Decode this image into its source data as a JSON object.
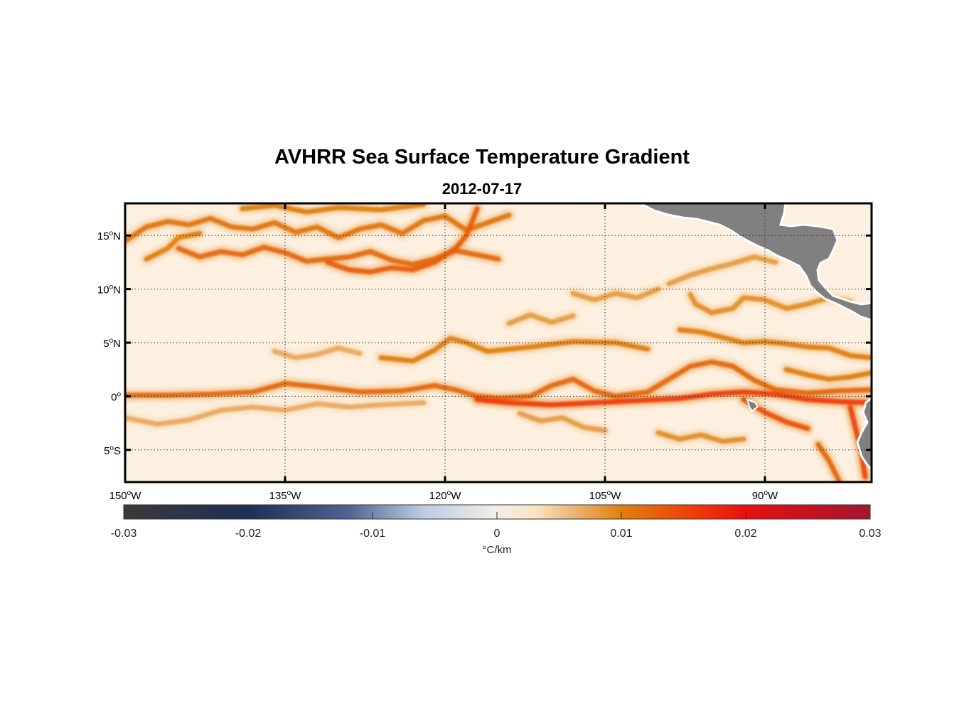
{
  "title": "AVHRR Sea Surface Temperature Gradient",
  "subtitle": "2012-07-17",
  "map": {
    "projection": "equirectangular",
    "lon_range": [
      -150,
      -80
    ],
    "lat_range": [
      -8,
      18
    ],
    "grid": "dotted",
    "lat_ticks": [
      {
        "value": 15,
        "label": "15",
        "hemi": "N"
      },
      {
        "value": 10,
        "label": "10",
        "hemi": "N"
      },
      {
        "value": 5,
        "label": "5",
        "hemi": "N"
      },
      {
        "value": 0,
        "label": "0",
        "hemi": ""
      },
      {
        "value": -5,
        "label": "5",
        "hemi": "S"
      }
    ],
    "lon_ticks": [
      {
        "value": -150,
        "label": "150",
        "hemi": "W"
      },
      {
        "value": -135,
        "label": "135",
        "hemi": "W"
      },
      {
        "value": -120,
        "label": "120",
        "hemi": "W"
      },
      {
        "value": -105,
        "label": "105",
        "hemi": "W"
      },
      {
        "value": -90,
        "label": "90",
        "hemi": "W"
      }
    ],
    "land_color": "#808080",
    "ocean_background": "#fdf0e0",
    "fronts": [
      {
        "name": "equatorial-front-main",
        "strength": 0.012,
        "points": [
          [
            -150,
            0.1
          ],
          [
            -146,
            0.1
          ],
          [
            -142,
            0.2
          ],
          [
            -138,
            0.4
          ],
          [
            -135,
            1.2
          ],
          [
            -132,
            0.9
          ],
          [
            -128,
            0.4
          ],
          [
            -124,
            0.5
          ],
          [
            -121,
            1.0
          ],
          [
            -119,
            0.6
          ],
          [
            -117,
            0.0
          ],
          [
            -115,
            -0.2
          ],
          [
            -112,
            0.0
          ],
          [
            -110,
            1.0
          ],
          [
            -108,
            1.6
          ],
          [
            -106,
            0.5
          ],
          [
            -104,
            0.0
          ],
          [
            -101,
            0.4
          ],
          [
            -99,
            1.6
          ],
          [
            -97,
            2.8
          ],
          [
            -95,
            3.2
          ],
          [
            -93,
            2.8
          ],
          [
            -91,
            1.5
          ],
          [
            -89,
            0.6
          ],
          [
            -86,
            0.3
          ],
          [
            -83,
            0.5
          ],
          [
            -80,
            0.6
          ]
        ]
      },
      {
        "name": "equatorial-front-south",
        "strength": 0.016,
        "points": [
          [
            -117,
            -0.3
          ],
          [
            -114,
            -0.6
          ],
          [
            -110,
            -0.8
          ],
          [
            -106,
            -0.6
          ],
          [
            -102,
            -0.4
          ],
          [
            -98,
            -0.2
          ],
          [
            -95,
            0.2
          ],
          [
            -92,
            0.4
          ],
          [
            -89,
            0.2
          ],
          [
            -86,
            -0.3
          ],
          [
            -83,
            -0.5
          ],
          [
            -80,
            -0.6
          ]
        ]
      },
      {
        "name": "cold-tongue-filament-1",
        "strength": 0.014,
        "points": [
          [
            -92,
            -0.3
          ],
          [
            -90,
            -1.5
          ],
          [
            -88,
            -2.4
          ],
          [
            -86,
            -3.0
          ]
        ]
      },
      {
        "name": "cold-tongue-filament-2",
        "strength": 0.015,
        "points": [
          [
            -82,
            -1.0
          ],
          [
            -81.5,
            -3.0
          ],
          [
            -81.0,
            -5.0
          ],
          [
            -80.6,
            -7.5
          ]
        ]
      },
      {
        "name": "cold-tongue-filament-3",
        "strength": 0.012,
        "points": [
          [
            -85,
            -4.5
          ],
          [
            -84,
            -6.0
          ],
          [
            -83,
            -8.0
          ]
        ]
      },
      {
        "name": "north-equatorial-front",
        "strength": 0.01,
        "points": [
          [
            -126,
            3.6
          ],
          [
            -123,
            3.3
          ],
          [
            -121,
            4.3
          ],
          [
            -119.5,
            5.4
          ],
          [
            -118,
            5.0
          ],
          [
            -116,
            4.2
          ],
          [
            -112,
            4.6
          ],
          [
            -108,
            5.1
          ],
          [
            -104,
            5.0
          ],
          [
            -101,
            4.4
          ]
        ]
      },
      {
        "name": "front-5n-east",
        "strength": 0.01,
        "points": [
          [
            -98,
            6.2
          ],
          [
            -96,
            6.0
          ],
          [
            -94,
            5.5
          ],
          [
            -92,
            5.0
          ],
          [
            -90,
            5.1
          ],
          [
            -88,
            4.9
          ],
          [
            -86,
            4.6
          ],
          [
            -84,
            4.5
          ],
          [
            -82,
            3.8
          ],
          [
            -80,
            3.6
          ]
        ]
      },
      {
        "name": "front-8n-east",
        "strength": 0.009,
        "points": [
          [
            -97,
            9.5
          ],
          [
            -96.5,
            8.6
          ],
          [
            -95,
            7.8
          ],
          [
            -93,
            8.2
          ],
          [
            -92,
            9.2
          ],
          [
            -90,
            9.0
          ],
          [
            -88,
            8.2
          ],
          [
            -86,
            8.6
          ],
          [
            -84,
            9.2
          ],
          [
            -82,
            8.8
          ]
        ]
      },
      {
        "name": "front-11n-east",
        "strength": 0.008,
        "points": [
          [
            -99,
            10.5
          ],
          [
            -97,
            11.3
          ],
          [
            -95,
            11.9
          ],
          [
            -93,
            12.4
          ],
          [
            -91,
            13.0
          ],
          [
            -89,
            12.5
          ]
        ]
      },
      {
        "name": "front-16n-1",
        "strength": 0.011,
        "points": [
          [
            -150,
            14.5
          ],
          [
            -148,
            15.8
          ],
          [
            -146,
            16.3
          ],
          [
            -144,
            16.0
          ],
          [
            -142,
            16.6
          ],
          [
            -140,
            15.8
          ],
          [
            -138,
            15.6
          ],
          [
            -136,
            16.2
          ],
          [
            -134,
            15.3
          ],
          [
            -132,
            15.8
          ],
          [
            -130,
            14.8
          ],
          [
            -128,
            15.6
          ],
          [
            -126,
            16.0
          ],
          [
            -124,
            15.2
          ],
          [
            -122,
            16.4
          ],
          [
            -120,
            16.8
          ],
          [
            -118,
            15.5
          ],
          [
            -116,
            16.2
          ],
          [
            -114,
            16.9
          ]
        ]
      },
      {
        "name": "front-13n-1",
        "strength": 0.012,
        "points": [
          [
            -145,
            13.8
          ],
          [
            -143,
            13.0
          ],
          [
            -141,
            13.5
          ],
          [
            -139,
            13.2
          ],
          [
            -137,
            13.9
          ],
          [
            -135,
            13.4
          ],
          [
            -133,
            12.6
          ],
          [
            -131,
            12.8
          ],
          [
            -129,
            13.0
          ],
          [
            -127,
            13.5
          ],
          [
            -125,
            12.7
          ],
          [
            -123,
            12.3
          ],
          [
            -121,
            12.8
          ],
          [
            -119,
            13.6
          ],
          [
            -117,
            13.2
          ],
          [
            -115,
            12.8
          ]
        ]
      },
      {
        "name": "front-12n-2",
        "strength": 0.013,
        "points": [
          [
            -131,
            12.5
          ],
          [
            -129,
            11.8
          ],
          [
            -127,
            11.6
          ],
          [
            -125,
            12.0
          ],
          [
            -123,
            11.8
          ],
          [
            -121,
            12.5
          ],
          [
            -119,
            13.8
          ],
          [
            -118,
            15.0
          ],
          [
            -117.5,
            16.2
          ],
          [
            -117,
            17.5
          ]
        ]
      },
      {
        "name": "front-14n-west",
        "strength": 0.01,
        "points": [
          [
            -148,
            12.8
          ],
          [
            -146,
            13.8
          ],
          [
            -145,
            14.8
          ],
          [
            -143,
            15.2
          ]
        ]
      },
      {
        "name": "front-17n-top",
        "strength": 0.01,
        "points": [
          [
            -139,
            17.5
          ],
          [
            -136,
            17.8
          ],
          [
            -133,
            17.2
          ],
          [
            -130,
            17.6
          ],
          [
            -126,
            17.4
          ],
          [
            -122,
            17.9
          ]
        ]
      },
      {
        "name": "front-south-3s",
        "strength": 0.007,
        "points": [
          [
            -150,
            -2.0
          ],
          [
            -147,
            -2.6
          ],
          [
            -144,
            -2.2
          ],
          [
            -141,
            -1.3
          ],
          [
            -138,
            -1.0
          ],
          [
            -135,
            -1.3
          ],
          [
            -132,
            -0.7
          ],
          [
            -129,
            -1.0
          ],
          [
            -126,
            -0.8
          ],
          [
            -122,
            -0.6
          ]
        ]
      },
      {
        "name": "front-eq-east-north",
        "strength": 0.01,
        "points": [
          [
            -88,
            2.5
          ],
          [
            -86,
            2.0
          ],
          [
            -84,
            1.6
          ],
          [
            -82,
            1.8
          ],
          [
            -80,
            2.2
          ]
        ]
      },
      {
        "name": "front-6n-mid",
        "strength": 0.008,
        "points": [
          [
            -114,
            6.8
          ],
          [
            -112,
            7.6
          ],
          [
            -110,
            6.9
          ],
          [
            -108,
            7.5
          ]
        ]
      },
      {
        "name": "front-9n-mid",
        "strength": 0.008,
        "points": [
          [
            -108,
            9.6
          ],
          [
            -106,
            9.0
          ],
          [
            -104,
            9.6
          ],
          [
            -102,
            9.2
          ],
          [
            -100,
            10.0
          ]
        ]
      },
      {
        "name": "front-3n-west",
        "strength": 0.007,
        "points": [
          [
            -136,
            4.2
          ],
          [
            -134,
            3.6
          ],
          [
            -132,
            3.9
          ],
          [
            -130,
            4.5
          ],
          [
            -128,
            4.0
          ]
        ]
      },
      {
        "name": "front-2s-mid",
        "strength": 0.008,
        "points": [
          [
            -113,
            -1.6
          ],
          [
            -111,
            -2.3
          ],
          [
            -109,
            -2.0
          ],
          [
            -107,
            -2.9
          ],
          [
            -105,
            -3.2
          ]
        ]
      },
      {
        "name": "front-4s-east",
        "strength": 0.009,
        "points": [
          [
            -100,
            -3.4
          ],
          [
            -98,
            -4.0
          ],
          [
            -96,
            -3.6
          ],
          [
            -94,
            -4.2
          ],
          [
            -92,
            -4.0
          ]
        ]
      }
    ]
  },
  "colorbar": {
    "min": -0.03,
    "max": 0.03,
    "tick_labels": [
      "-0.03",
      "-0.02",
      "-0.01",
      "0",
      "0.01",
      "0.02",
      "0.03"
    ],
    "tick_values": [
      -0.03,
      -0.02,
      -0.01,
      0,
      0.01,
      0.02,
      0.03
    ],
    "units": "°C/km",
    "stops": [
      {
        "value": -0.03,
        "color": "#3a3a3a"
      },
      {
        "value": -0.02,
        "color": "#1f2e55"
      },
      {
        "value": -0.012,
        "color": "#51628f"
      },
      {
        "value": -0.006,
        "color": "#bccbe3"
      },
      {
        "value": 0.0,
        "color": "#f1efe6"
      },
      {
        "value": 0.003,
        "color": "#fbe5c4"
      },
      {
        "value": 0.006,
        "color": "#ebb77a"
      },
      {
        "value": 0.01,
        "color": "#e0800e"
      },
      {
        "value": 0.016,
        "color": "#f03b08"
      },
      {
        "value": 0.02,
        "color": "#e81010"
      },
      {
        "value": 0.03,
        "color": "#a31631"
      }
    ]
  }
}
